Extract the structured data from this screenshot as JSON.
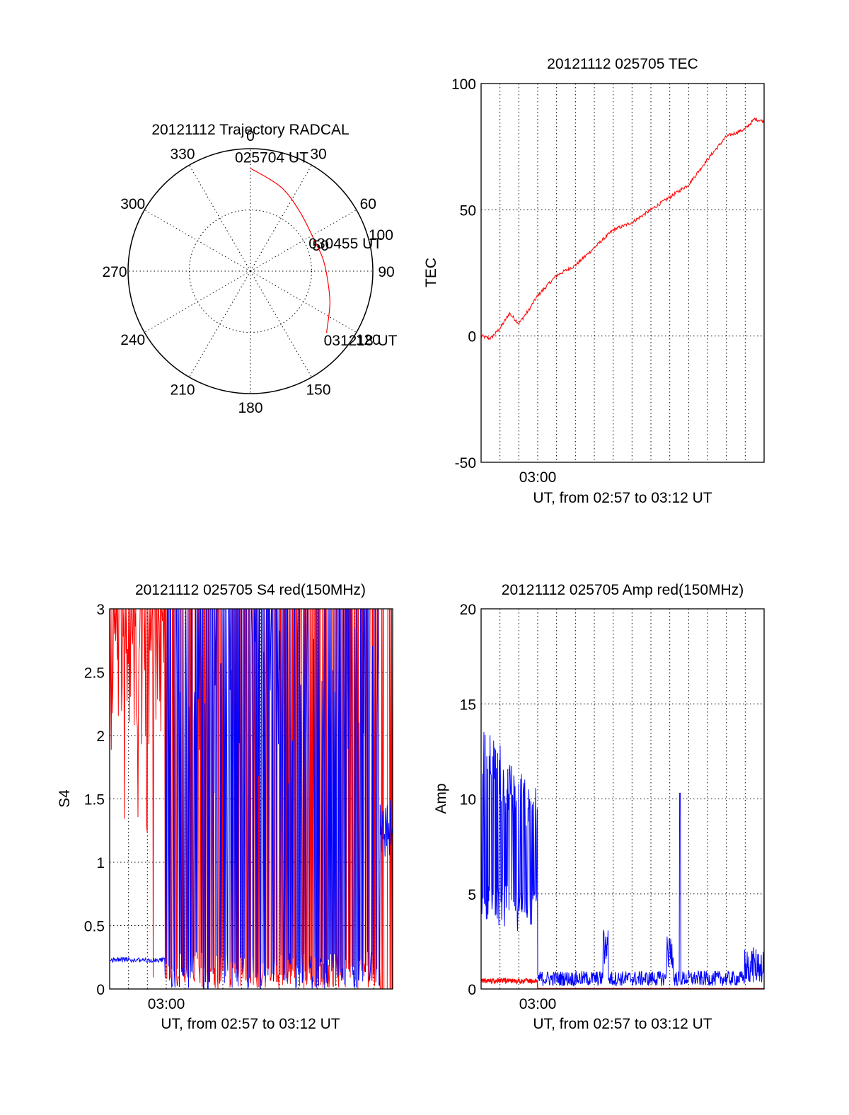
{
  "chart_data": [
    {
      "id": "trajectory",
      "type": "polar",
      "title": "20121112 Trajectory RADCAL",
      "angle_labels": [
        "0",
        "30",
        "60",
        "90",
        "120",
        "150",
        "180",
        "210",
        "240",
        "270",
        "300",
        "330"
      ],
      "radius_labels": [
        "50",
        "100"
      ],
      "rmax": 100,
      "grid": true,
      "series": [
        {
          "color": "#ff0000",
          "points": [
            {
              "az": 0,
              "r": 84
            },
            {
              "az": 20,
              "r": 73
            },
            {
              "az": 40,
              "r": 63
            },
            {
              "az": 65,
              "r": 58
            },
            {
              "az": 80,
              "r": 60
            },
            {
              "az": 95,
              "r": 63
            },
            {
              "az": 112,
              "r": 70
            },
            {
              "az": 129,
              "r": 80
            }
          ]
        }
      ],
      "annotations": [
        {
          "text": "025704 UT",
          "az": 0,
          "r": 84
        },
        {
          "text": "030455 UT",
          "az": 80,
          "r": 60
        },
        {
          "text": "031218 UT",
          "az": 129,
          "r": 80
        }
      ]
    },
    {
      "id": "tec",
      "type": "line",
      "title": "20121112 025705 TEC",
      "xlabel": "UT, from 02:57 to 03:12 UT",
      "ylabel": "TEC",
      "xlim": [
        "02:57",
        "03:12"
      ],
      "ylim": [
        -50,
        100
      ],
      "xticks": [
        "03:00"
      ],
      "yticks": [
        -50,
        0,
        50,
        100
      ],
      "grid": true,
      "series": [
        {
          "color": "#ff0000",
          "x": [
            "02:57",
            "02:57:30",
            "02:58",
            "02:58:30",
            "02:59",
            "02:59:30",
            "03:00",
            "03:01",
            "03:02",
            "03:03",
            "03:04",
            "03:05",
            "03:06",
            "03:07",
            "03:08",
            "03:09",
            "03:10",
            "03:11",
            "03:11:30",
            "03:12"
          ],
          "y": [
            0,
            -1,
            3,
            9,
            5,
            10,
            16,
            24,
            28,
            35,
            42,
            45,
            50,
            55,
            60,
            70,
            79,
            82,
            86,
            85
          ]
        }
      ]
    },
    {
      "id": "s4",
      "type": "line",
      "title": "20121112 025705 S4 red(150MHz)",
      "xlabel": "UT, from 02:57 to 03:12 UT",
      "ylabel": "S4",
      "xlim": [
        "02:57",
        "03:12"
      ],
      "ylim": [
        0,
        3
      ],
      "xticks": [
        "03:00"
      ],
      "yticks": [
        "0",
        "0.5",
        "1",
        "1.5",
        "2",
        "2.5",
        "3"
      ],
      "grid": true,
      "series": [
        {
          "color": "#ff0000",
          "description": "S4 red, saturating ~2-3 before 02:59:50, rapid 0-3 oscillation after"
        },
        {
          "color": "#0000ff",
          "description": "S4 blue, ~0.22 before 02:59:50, rapid 0-3 oscillation after, ~1.2 near 03:12"
        }
      ]
    },
    {
      "id": "amp",
      "type": "line",
      "title": "20121112 025705 Amp red(150MHz)",
      "xlabel": "UT, from 02:57 to 03:12 UT",
      "ylabel": "Amp",
      "xlim": [
        "02:57",
        "03:12"
      ],
      "ylim": [
        0,
        20
      ],
      "xticks": [
        "03:00"
      ],
      "yticks": [
        0,
        5,
        10,
        15,
        20
      ],
      "grid": true,
      "series": [
        {
          "color": "#ff0000",
          "description": "Amp red ~0.4 before 03:00, near zero after"
        },
        {
          "color": "#0000ff",
          "description": "Amp blue noisy 3-14 before 03:00, ~0.5 after with spikes at 03:04:20, 03:07:20, 03:08:20"
        }
      ]
    }
  ]
}
